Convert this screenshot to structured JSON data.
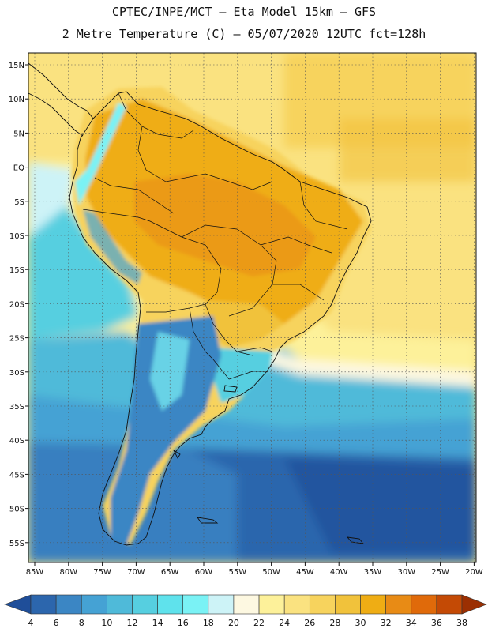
{
  "header": {
    "line1": "CPTEC/INPE/MCT –  Eta Model 15km – GFS",
    "line2": "2 Metre Temperature (C) – 05/07/2020 12UTC fct=128h"
  },
  "map": {
    "region": "South America",
    "lat_labels": [
      "15N",
      "10N",
      "5N",
      "EQ",
      "5S",
      "10S",
      "15S",
      "20S",
      "25S",
      "30S",
      "35S",
      "40S",
      "45S",
      "50S",
      "55S"
    ],
    "lon_labels": [
      "85W",
      "80W",
      "75W",
      "70W",
      "65W",
      "60W",
      "55W",
      "50W",
      "45W",
      "40W",
      "35W",
      "30W",
      "25W",
      "20W"
    ]
  },
  "colorbar": {
    "labels": [
      "4",
      "6",
      "8",
      "10",
      "12",
      "14",
      "16",
      "18",
      "20",
      "22",
      "24",
      "26",
      "28",
      "30",
      "32",
      "34",
      "36",
      "38"
    ],
    "colors": [
      "#1f4e99",
      "#2c66ad",
      "#3b86c4",
      "#45a2d4",
      "#4fbad9",
      "#56cfe0",
      "#5fe2ec",
      "#7af2f5",
      "#cdf3f7",
      "#fdf8e1",
      "#fdf19a",
      "#fae280",
      "#f7d35d",
      "#f1c23b",
      "#efad14",
      "#e88b15",
      "#e06a0a",
      "#c44a05",
      "#9b2f02"
    ]
  }
}
